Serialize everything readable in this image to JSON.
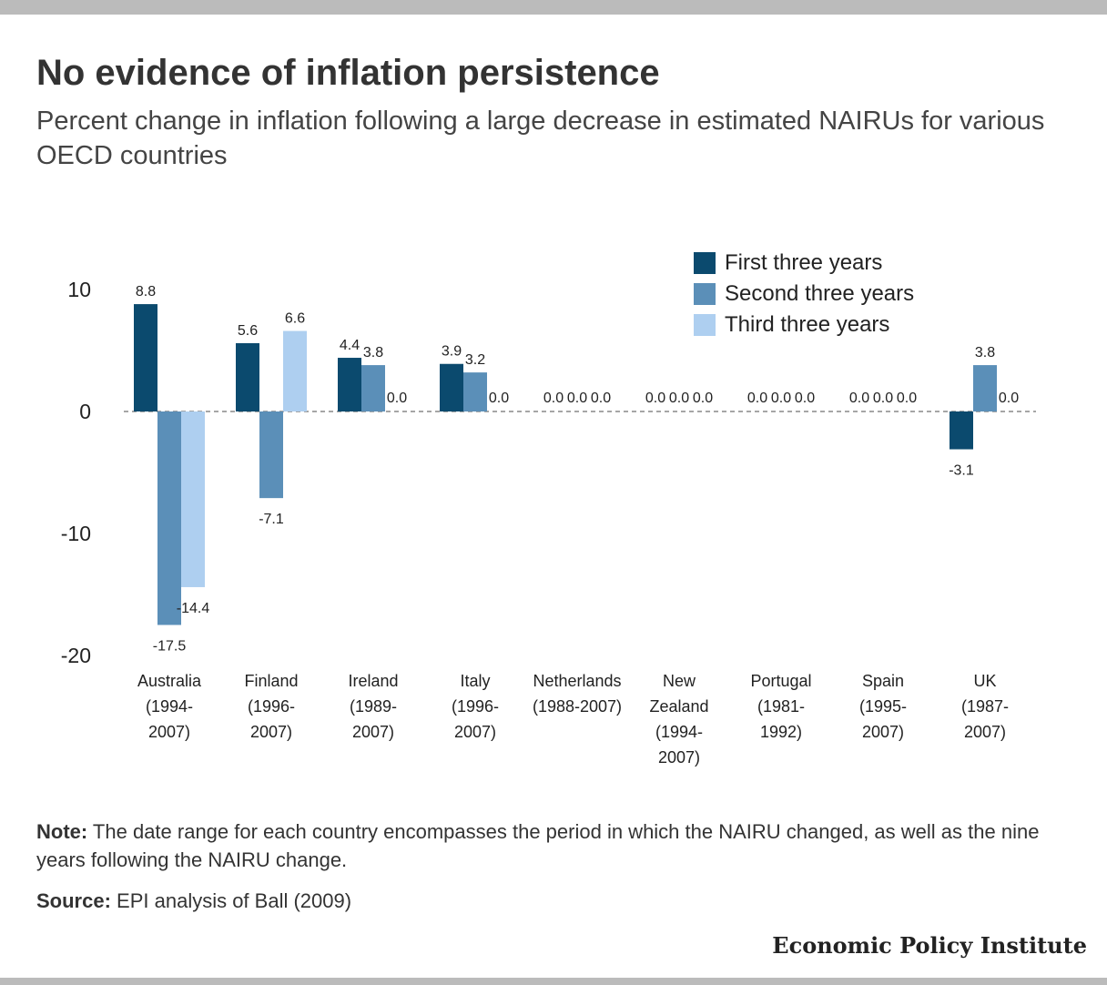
{
  "header": {
    "title": "No evidence of inflation persistence",
    "subtitle": "Percent change in inflation following a large decrease in estimated NAIRUs for various OECD countries"
  },
  "chart_data": {
    "type": "bar",
    "categories": [
      [
        "Australia",
        "(1994-",
        "2007)"
      ],
      [
        "Finland",
        "(1996-",
        "2007)"
      ],
      [
        "Ireland",
        "(1989-",
        "2007)"
      ],
      [
        "Italy",
        "(1996-",
        "2007)"
      ],
      [
        "Netherlands",
        "(1988-2007)"
      ],
      [
        "New",
        "Zealand",
        "(1994-",
        "2007)"
      ],
      [
        "Portugal",
        "(1981-",
        "1992)"
      ],
      [
        "Spain",
        "(1995-",
        "2007)"
      ],
      [
        "UK",
        "(1987-",
        "2007)"
      ]
    ],
    "series": [
      {
        "name": "First three years",
        "color": "#0b4a6e",
        "values": [
          8.8,
          5.6,
          4.4,
          3.9,
          0.0,
          0.0,
          0.0,
          0.0,
          -3.1
        ]
      },
      {
        "name": "Second three years",
        "color": "#5b8fb8",
        "values": [
          -17.5,
          -7.1,
          3.8,
          3.2,
          0.0,
          0.0,
          0.0,
          0.0,
          3.8
        ]
      },
      {
        "name": "Third three years",
        "color": "#aecff0",
        "values": [
          -14.4,
          6.6,
          0.0,
          0.0,
          0.0,
          0.0,
          0.0,
          0.0,
          0.0
        ]
      }
    ],
    "data_labels": [
      [
        "8.8",
        "-17.5",
        "-14.4"
      ],
      [
        "5.6",
        "-7.1",
        "6.6"
      ],
      [
        "4.4",
        "3.8",
        "0.0"
      ],
      [
        "3.9",
        "3.2",
        "0.0"
      ],
      [
        "0.0",
        "0.0",
        "0.0"
      ],
      [
        "0.0",
        "0.0",
        "0.0"
      ],
      [
        "0.0",
        "0.0",
        "0.0"
      ],
      [
        "0.0",
        "0.0",
        "0.0"
      ],
      [
        "-3.1",
        "3.8",
        "0.0"
      ]
    ],
    "yticks": [
      10,
      0,
      -10,
      -20
    ],
    "ylim": [
      -20,
      10
    ],
    "legend_position": "top-right",
    "grid": false,
    "zero_line": "dashed"
  },
  "footer": {
    "note_label": "Note:",
    "note_text": " The date range for each country encompasses the period in which the NAIRU changed, as well as the nine years following the NAIRU change.",
    "source_label": "Source:",
    "source_text": " EPI analysis of Ball (2009)",
    "brand": "Economic Policy Institute"
  }
}
